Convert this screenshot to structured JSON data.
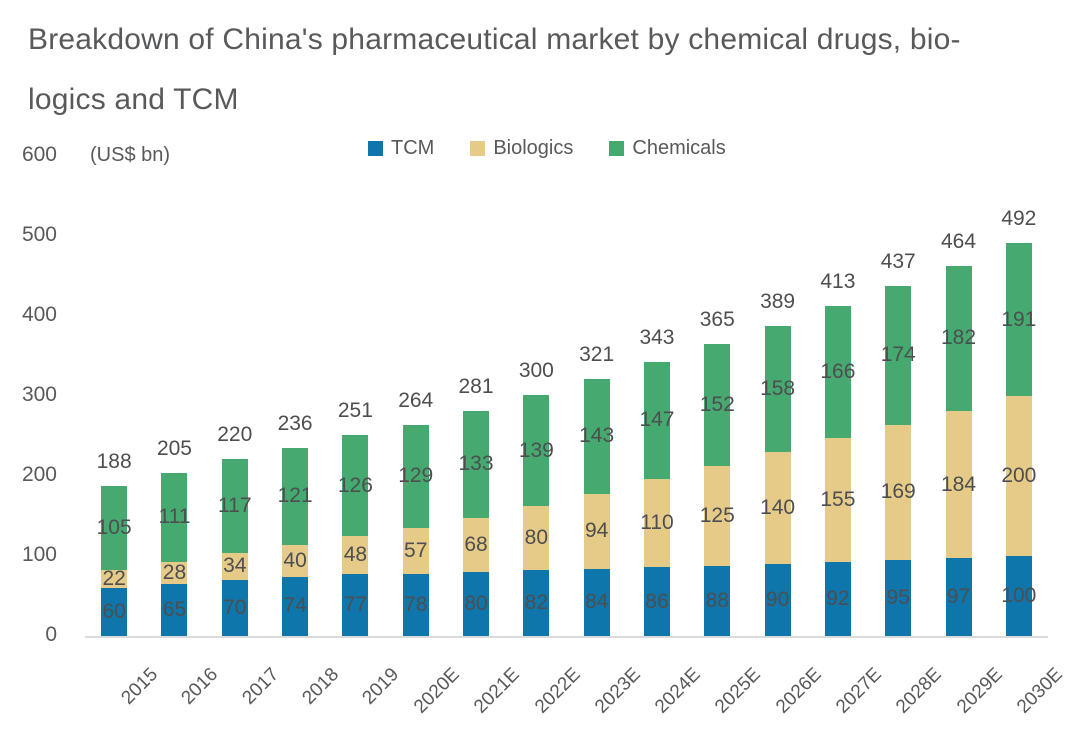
{
  "title": {
    "line1": "Breakdown of China's pharmaceutical market by chemical drugs, bio-",
    "line2": "logics and TCM"
  },
  "axis": {
    "unit_label": "(US$ bn)",
    "y_ticks": [
      600,
      500,
      400,
      300,
      200,
      100,
      0
    ]
  },
  "legend": [
    {
      "label": "TCM",
      "color": "#0e76ab"
    },
    {
      "label": "Biologics",
      "color": "#e6cb88"
    },
    {
      "label": "Chemicals",
      "color": "#45a970"
    }
  ],
  "colors": {
    "tcm": "#0e76ab",
    "biologics": "#e6cb88",
    "chemicals": "#45a970",
    "text": "#58595b",
    "value_text": "#4d4e50",
    "axis_line": "#dadada",
    "background": "#ffffff"
  },
  "chart_data": {
    "type": "bar",
    "stacked": true,
    "title": "Breakdown of China's pharmaceutical market by chemical drugs, biologics and TCM",
    "ylabel": "(US$ bn)",
    "ylim": [
      0,
      600
    ],
    "grid": false,
    "legend_position": "top-center",
    "categories": [
      "2015",
      "2016",
      "2017",
      "2018",
      "2019",
      "2020E",
      "2021E",
      "2022E",
      "2023E",
      "2024E",
      "2025E",
      "2026E",
      "2027E",
      "2028E",
      "2029E",
      "2030E"
    ],
    "series": [
      {
        "name": "TCM",
        "color": "#0e76ab",
        "values": [
          60,
          65,
          70,
          74,
          77,
          78,
          80,
          82,
          84,
          86,
          88,
          90,
          92,
          95,
          97,
          100
        ]
      },
      {
        "name": "Biologics",
        "color": "#e6cb88",
        "values": [
          22,
          28,
          34,
          40,
          48,
          57,
          68,
          80,
          94,
          110,
          125,
          140,
          155,
          169,
          184,
          200
        ]
      },
      {
        "name": "Chemicals",
        "color": "#45a970",
        "values": [
          105,
          111,
          117,
          121,
          126,
          129,
          133,
          139,
          143,
          147,
          152,
          158,
          166,
          174,
          182,
          191
        ]
      }
    ],
    "totals": [
      188,
      205,
      220,
      236,
      251,
      264,
      281,
      300,
      321,
      343,
      365,
      389,
      413,
      437,
      464,
      492
    ]
  }
}
